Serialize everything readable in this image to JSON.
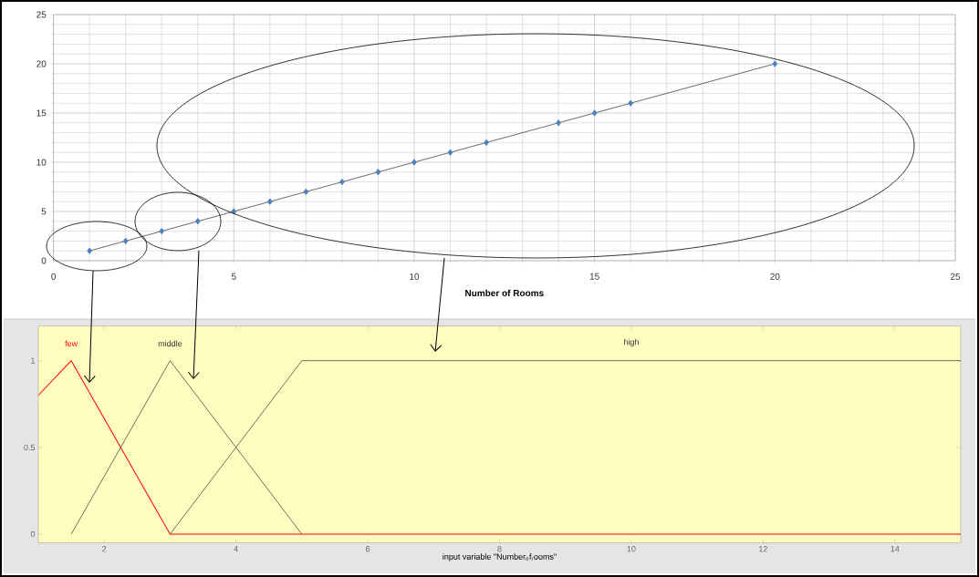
{
  "chart_data": [
    {
      "type": "line",
      "xlabel": "Number of Rooms",
      "x": [
        1,
        2,
        3,
        4,
        5,
        6,
        7,
        8,
        9,
        10,
        11,
        12,
        14,
        15,
        16,
        20
      ],
      "series": [
        {
          "color": "#4f81bd",
          "values": [
            1,
            2,
            3,
            4,
            5,
            6,
            7,
            8,
            9,
            10,
            11,
            12,
            14,
            15,
            16,
            20
          ]
        }
      ],
      "marker": "diamond",
      "xlim": [
        0,
        25
      ],
      "ylim": [
        0,
        25
      ],
      "xticks": [
        0,
        5,
        10,
        15,
        20,
        25
      ],
      "yticks": [
        0,
        5,
        10,
        15,
        20,
        25
      ],
      "grid": true
    },
    {
      "type": "line",
      "xlabel": "input variable \"Number$_{o}$f$_{r}$ooms\"",
      "series": [
        {
          "name": "few",
          "color": "#ff0000",
          "x": [
            1,
            1.5,
            3,
            15
          ],
          "values": [
            0.8,
            1,
            0,
            0
          ]
        },
        {
          "name": "middle",
          "color": "#333333",
          "x": [
            1.5,
            3,
            5
          ],
          "values": [
            0,
            1,
            0
          ]
        },
        {
          "name": "high",
          "color": "#333333",
          "x": [
            3,
            5,
            15
          ],
          "values": [
            0,
            1,
            1
          ]
        }
      ],
      "xlim": [
        1,
        15
      ],
      "ylim": [
        -0.05,
        1.2
      ],
      "xticks": [
        2,
        4,
        6,
        8,
        10,
        12,
        14
      ],
      "yticks": [
        0,
        0.5,
        1
      ]
    }
  ]
}
